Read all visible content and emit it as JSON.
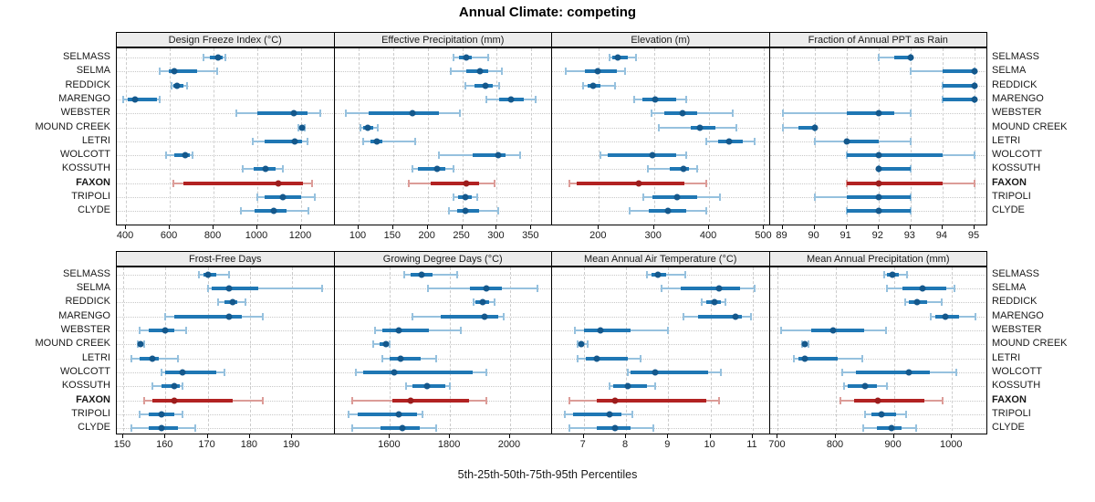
{
  "title": "Annual Climate: competing",
  "caption": "5th-25th-50th-75th-95th Percentiles",
  "highlight_site": "FAXON",
  "sites": [
    "SELMASS",
    "SELMA",
    "REDDICK",
    "MARENGO",
    "WEBSTER",
    "MOUND CREEK",
    "LETRI",
    "WOLCOTT",
    "KOSSUTH",
    "FAXON",
    "TRIPOLI",
    "CLYDE"
  ],
  "colors": {
    "normal_dot": "#14588c",
    "normal_box": "#1f77b4",
    "normal_whisker": "#96c1de",
    "highlight_dot": "#9c1c1c",
    "highlight_box": "#b22222",
    "highlight_whisker": "#dc9c98",
    "strip_bg": "#ececec",
    "grid": "#cccccc",
    "panel_border": "#000000"
  },
  "chart_data": {
    "type": "dotplot",
    "percentile_labels": [
      "5th",
      "25th",
      "50th",
      "75th",
      "95th"
    ],
    "panels": [
      {
        "title": "Design Freeze Index (°C)",
        "xlim": [
          358,
          1352
        ],
        "ticks": [
          400,
          600,
          800,
          1000,
          1200
        ],
        "values": {
          "SELMASS": [
            755,
            784,
            821,
            840,
            853
          ],
          "SELMA": [
            553,
            594,
            622,
            726,
            816
          ],
          "REDDICK": [
            607,
            618,
            632,
            662,
            680
          ],
          "MARENGO": [
            386,
            408,
            440,
            540,
            553
          ],
          "WEBSTER": [
            902,
            998,
            1165,
            1231,
            1289
          ],
          "MOUND CREEK": [
            1189,
            1197,
            1204,
            1211,
            1217
          ],
          "LETRI": [
            978,
            1035,
            1172,
            1206,
            1228
          ],
          "WOLCOTT": [
            583,
            620,
            669,
            690,
            704
          ],
          "KOSSUTH": [
            935,
            984,
            1039,
            1085,
            1117
          ],
          "FAXON": [
            618,
            662,
            1095,
            1210,
            1251
          ],
          "TRIPOLI": [
            998,
            1034,
            1117,
            1200,
            1261
          ],
          "CLYDE": [
            926,
            988,
            1075,
            1133,
            1233
          ]
        }
      },
      {
        "title": "Effective Precipitation (mm)",
        "xlim": [
          65,
          380
        ],
        "ticks": [
          100,
          150,
          200,
          250,
          300,
          350
        ],
        "values": {
          "SELMASS": [
            237,
            245,
            256,
            264,
            287
          ],
          "SELMA": [
            233,
            256,
            275,
            288,
            307
          ],
          "REDDICK": [
            254,
            268,
            283,
            294,
            303
          ],
          "MARENGO": [
            285,
            304,
            321,
            339,
            356
          ],
          "WEBSTER": [
            82,
            115,
            178,
            216,
            246
          ],
          "MOUND CREEK": [
            103,
            107,
            113,
            121,
            128
          ],
          "LETRI": [
            107,
            117,
            126,
            134,
            182
          ],
          "WOLCOTT": [
            216,
            265,
            302,
            312,
            334
          ],
          "KOSSUTH": [
            178,
            186,
            214,
            225,
            237
          ],
          "FAXON": [
            173,
            204,
            256,
            274,
            297
          ],
          "TRIPOLI": [
            237,
            244,
            255,
            264,
            272
          ],
          "CLYDE": [
            231,
            242,
            255,
            275,
            302
          ]
        }
      },
      {
        "title": "Elevation (m)",
        "xlim": [
          115,
          510
        ],
        "ticks": [
          200,
          300,
          400,
          500
        ],
        "values": {
          "SELMASS": [
            220,
            225,
            235,
            253,
            268
          ],
          "SELMA": [
            140,
            175,
            197,
            232,
            248
          ],
          "REDDICK": [
            172,
            180,
            190,
            202,
            229
          ],
          "MARENGO": [
            264,
            279,
            302,
            340,
            359
          ],
          "WEBSTER": [
            296,
            318,
            352,
            378,
            443
          ],
          "MOUND CREEK": [
            309,
            367,
            384,
            411,
            450
          ],
          "LETRI": [
            395,
            417,
            437,
            461,
            483
          ],
          "WOLCOTT": [
            203,
            216,
            298,
            340,
            359
          ],
          "KOSSUTH": [
            289,
            329,
            353,
            363,
            378
          ],
          "FAXON": [
            147,
            160,
            272,
            355,
            395
          ],
          "TRIPOLI": [
            280,
            298,
            342,
            378,
            419
          ],
          "CLYDE": [
            256,
            290,
            325,
            359,
            395
          ]
        }
      },
      {
        "title": "Fraction of Annual PPT as Rain",
        "xlim": [
          88.6,
          95.4
        ],
        "ticks": [
          89,
          90,
          91,
          92,
          93,
          94,
          95
        ],
        "values": {
          "SELMASS": [
            92,
            92.5,
            93,
            93,
            93
          ],
          "SELMA": [
            93,
            94,
            95,
            95,
            95
          ],
          "REDDICK": [
            94,
            94,
            95,
            95,
            95
          ],
          "MARENGO": [
            94,
            94,
            95,
            95,
            95
          ],
          "WEBSTER": [
            89,
            91,
            92,
            92.5,
            93
          ],
          "MOUND CREEK": [
            89,
            89.5,
            90,
            90,
            90
          ],
          "LETRI": [
            90,
            91,
            91,
            92,
            93
          ],
          "WOLCOTT": [
            91,
            91,
            92,
            94,
            95
          ],
          "KOSSUTH": [
            92,
            92,
            92,
            93,
            93
          ],
          "FAXON": [
            91,
            91,
            92,
            94,
            95
          ],
          "TRIPOLI": [
            90,
            91,
            92,
            93,
            93
          ],
          "CLYDE": [
            91,
            91,
            92,
            93,
            93
          ]
        }
      },
      {
        "title": "Frost-Free Days",
        "xlim": [
          148.5,
          200
        ],
        "ticks": [
          150,
          160,
          170,
          180,
          190
        ],
        "values": {
          "SELMASS": [
            168,
            169,
            170,
            172,
            175
          ],
          "SELMA": [
            170,
            171,
            175,
            182,
            197
          ],
          "REDDICK": [
            172.5,
            174,
            176,
            177,
            179
          ],
          "MARENGO": [
            160,
            162,
            175,
            178,
            183
          ],
          "WEBSTER": [
            154,
            156,
            160,
            162,
            165
          ],
          "MOUND CREEK": [
            153.5,
            154,
            154.2,
            154.5,
            155
          ],
          "LETRI": [
            152,
            154,
            157,
            158.5,
            163
          ],
          "WOLCOTT": [
            159,
            160,
            164,
            172,
            174
          ],
          "KOSSUTH": [
            157,
            159,
            162,
            163.5,
            164
          ],
          "FAXON": [
            155,
            157,
            162,
            176,
            183
          ],
          "TRIPOLI": [
            154,
            156,
            159,
            162,
            164
          ],
          "CLYDE": [
            152,
            156,
            159,
            163,
            167
          ]
        }
      },
      {
        "title": "Growing Degree Days (°C)",
        "xlim": [
          1415,
          2140
        ],
        "ticks": [
          1600,
          1800,
          2000
        ],
        "values": {
          "SELMASS": [
            1648,
            1668,
            1706,
            1743,
            1823
          ],
          "SELMA": [
            1728,
            1865,
            1920,
            1973,
            2090
          ],
          "REDDICK": [
            1878,
            1886,
            1908,
            1930,
            1948
          ],
          "MARENGO": [
            1675,
            1770,
            1915,
            1960,
            1980
          ],
          "WEBSTER": [
            1550,
            1575,
            1630,
            1730,
            1835
          ],
          "MOUND CREEK": [
            1545,
            1565,
            1588,
            1595,
            1600
          ],
          "LETRI": [
            1575,
            1598,
            1635,
            1703,
            1755
          ],
          "WOLCOTT": [
            1485,
            1510,
            1615,
            1875,
            1920
          ],
          "KOSSUTH": [
            1655,
            1675,
            1725,
            1783,
            1800
          ],
          "FAXON": [
            1473,
            1608,
            1668,
            1863,
            1920
          ],
          "TRIPOLI": [
            1462,
            1492,
            1630,
            1691,
            1709
          ],
          "CLYDE": [
            1475,
            1570,
            1640,
            1700,
            1755
          ]
        }
      },
      {
        "title": "Mean Annual Air Temperature (°C)",
        "xlim": [
          6.25,
          11.4
        ],
        "ticks": [
          7,
          8,
          9,
          10,
          11
        ],
        "values": {
          "SELMASS": [
            8.5,
            8.6,
            8.75,
            8.95,
            9.4
          ],
          "SELMA": [
            8.85,
            9.3,
            10.2,
            10.7,
            11.05
          ],
          "REDDICK": [
            9.8,
            9.9,
            10.1,
            10.25,
            10.35
          ],
          "MARENGO": [
            9.35,
            9.7,
            10.6,
            10.75,
            10.95
          ],
          "WEBSTER": [
            6.8,
            7.0,
            7.4,
            8.1,
            9.0
          ],
          "MOUND CREEK": [
            6.85,
            6.9,
            6.95,
            7.0,
            7.1
          ],
          "LETRI": [
            6.85,
            7.05,
            7.3,
            8.05,
            8.35
          ],
          "WOLCOTT": [
            8.05,
            8.1,
            8.7,
            9.95,
            10.25
          ],
          "KOSSUTH": [
            7.6,
            7.7,
            8.05,
            8.5,
            8.7
          ],
          "FAXON": [
            6.65,
            7.3,
            7.75,
            9.9,
            10.2
          ],
          "TRIPOLI": [
            6.55,
            6.75,
            7.6,
            7.9,
            8.15
          ],
          "CLYDE": [
            6.65,
            7.3,
            7.75,
            8.1,
            8.65
          ]
        }
      },
      {
        "title": "Mean Annual Precipitation (mm)",
        "xlim": [
          686,
          1061
        ],
        "ticks": [
          700,
          800,
          900,
          1000
        ],
        "values": {
          "SELMASS": [
            883,
            888,
            898,
            908,
            922
          ],
          "SELMA": [
            888,
            915,
            950,
            990,
            1005
          ],
          "REDDICK": [
            920,
            926,
            940,
            958,
            983
          ],
          "MARENGO": [
            964,
            971,
            988,
            1012,
            1041
          ],
          "WEBSTER": [
            705,
            758,
            795,
            848,
            887
          ],
          "MOUND CREEK": [
            742,
            744,
            746,
            749,
            753
          ],
          "LETRI": [
            727,
            735,
            746,
            803,
            846
          ],
          "WOLCOTT": [
            811,
            835,
            926,
            962,
            1008
          ],
          "KOSSUTH": [
            814,
            820,
            850,
            870,
            888
          ],
          "FAXON": [
            808,
            832,
            872,
            953,
            984
          ],
          "TRIPOLI": [
            850,
            862,
            879,
            904,
            921
          ],
          "CLYDE": [
            847,
            870,
            896,
            914,
            938
          ]
        }
      }
    ]
  }
}
